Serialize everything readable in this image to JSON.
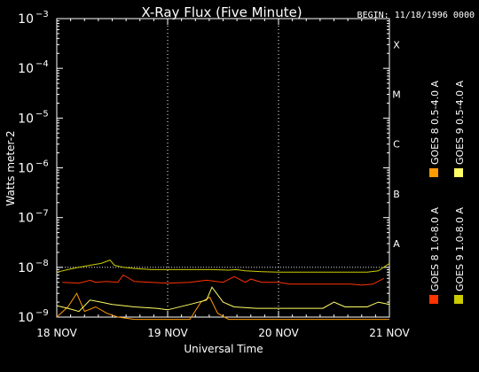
{
  "chart_data": {
    "type": "line",
    "title": "X-Ray Flux (Five Minute)",
    "begin_label": "BEGIN: 11/18/1996 0000",
    "ylabel": "Watts meter-2",
    "xlabel": "Universal Time",
    "yscale": "log",
    "ylim": [
      1e-09,
      0.001
    ],
    "xlim": [
      0,
      3
    ],
    "x_unit": "days since 18 NOV 1996 0000 UT",
    "y_ticks": [
      {
        "value": 0.001,
        "label": "10",
        "exp": "−3"
      },
      {
        "value": 0.0001,
        "label": "10",
        "exp": "−4"
      },
      {
        "value": 1e-05,
        "label": "10",
        "exp": "−5"
      },
      {
        "value": 1e-06,
        "label": "10",
        "exp": "−6"
      },
      {
        "value": 1e-07,
        "label": "10",
        "exp": "−7"
      },
      {
        "value": 1e-08,
        "label": "10",
        "exp": "−8"
      },
      {
        "value": 1e-09,
        "label": "10",
        "exp": "−9"
      }
    ],
    "x_ticks": [
      {
        "value": 0,
        "label": "18 NOV"
      },
      {
        "value": 1,
        "label": "19 NOV"
      },
      {
        "value": 2,
        "label": "20 NOV"
      },
      {
        "value": 3,
        "label": "21 NOV"
      }
    ],
    "flare_classes": [
      {
        "label": "X",
        "value": 0.0003
      },
      {
        "label": "M",
        "value": 3e-05
      },
      {
        "label": "C",
        "value": 3e-06
      },
      {
        "label": "B",
        "value": 3e-07
      },
      {
        "label": "A",
        "value": 3e-08
      }
    ],
    "day_lines": [
      1,
      2
    ],
    "series": [
      {
        "name": "GOES 8 1.0-8.0 A",
        "color": "#ff3300",
        "x": [
          0.05,
          0.2,
          0.3,
          0.35,
          0.45,
          0.55,
          0.6,
          0.7,
          0.85,
          1.0,
          1.2,
          1.35,
          1.5,
          1.6,
          1.7,
          1.75,
          1.85,
          2.0,
          2.1,
          2.3,
          2.5,
          2.65,
          2.75,
          2.85,
          2.95
        ],
        "y": [
          5e-09,
          4.8e-09,
          5.5e-09,
          5e-09,
          5.2e-09,
          5e-09,
          7e-09,
          5.2e-09,
          5e-09,
          4.8e-09,
          5e-09,
          5.5e-09,
          5e-09,
          6.5e-09,
          5e-09,
          5.8e-09,
          5e-09,
          5e-09,
          4.6e-09,
          4.6e-09,
          4.6e-09,
          4.6e-09,
          4.4e-09,
          4.6e-09,
          6e-09
        ]
      },
      {
        "name": "GOES 8 0.5-4.0 A",
        "color": "#ff9900",
        "x": [
          0.0,
          0.1,
          0.18,
          0.25,
          0.35,
          0.45,
          0.55,
          0.7,
          0.85,
          1.0,
          1.2,
          1.3,
          1.38,
          1.45,
          1.55,
          1.7,
          1.9,
          2.1,
          2.3,
          2.5,
          2.7,
          2.9,
          3.0
        ],
        "y": [
          1e-09,
          1.6e-09,
          3e-09,
          1.3e-09,
          1.6e-09,
          1.2e-09,
          1e-09,
          9e-10,
          9e-10,
          9e-10,
          9e-10,
          2e-09,
          2.5e-09,
          1.2e-09,
          9e-10,
          9e-10,
          9e-10,
          9e-10,
          9e-10,
          9e-10,
          9e-10,
          9e-10,
          9e-10
        ]
      },
      {
        "name": "GOES 9 1.0-8.0 A",
        "color": "#cccc00",
        "x": [
          0.0,
          0.1,
          0.2,
          0.3,
          0.4,
          0.48,
          0.52,
          0.6,
          0.7,
          0.85,
          1.0,
          1.2,
          1.4,
          1.55,
          1.62,
          1.7,
          1.85,
          2.0,
          2.2,
          2.4,
          2.6,
          2.8,
          2.9,
          3.0
        ],
        "y": [
          8e-09,
          9e-09,
          1e-08,
          1.1e-08,
          1.2e-08,
          1.4e-08,
          1.1e-08,
          1e-08,
          9.5e-09,
          9e-09,
          9e-09,
          9e-09,
          9e-09,
          8.8e-09,
          9e-09,
          8.5e-09,
          8.2e-09,
          8e-09,
          8e-09,
          8e-09,
          8e-09,
          8e-09,
          8.5e-09,
          1.2e-08
        ]
      },
      {
        "name": "GOES 9 0.5-4.0 A",
        "color": "#ffff66",
        "x": [
          0.0,
          0.1,
          0.2,
          0.3,
          0.4,
          0.5,
          0.7,
          0.9,
          1.0,
          1.2,
          1.35,
          1.4,
          1.5,
          1.6,
          1.8,
          2.0,
          2.2,
          2.4,
          2.5,
          2.6,
          2.8,
          2.9,
          3.0
        ],
        "y": [
          1.7e-09,
          1.5e-09,
          1.3e-09,
          2.2e-09,
          2e-09,
          1.8e-09,
          1.6e-09,
          1.5e-09,
          1.4e-09,
          1.8e-09,
          2.2e-09,
          4e-09,
          2e-09,
          1.6e-09,
          1.5e-09,
          1.5e-09,
          1.5e-09,
          1.5e-09,
          2e-09,
          1.6e-09,
          1.6e-09,
          2e-09,
          1.8e-09
        ]
      }
    ],
    "legend_placement": "right-vertical"
  }
}
